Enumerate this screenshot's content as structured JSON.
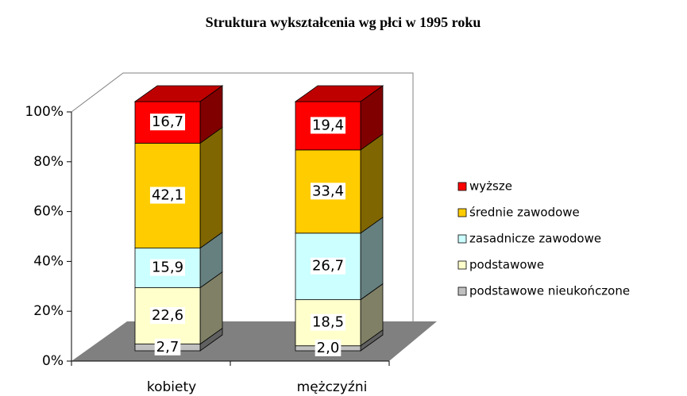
{
  "chart_data": {
    "type": "bar",
    "stacked": true,
    "title": "Struktura wykształcenia wg płci w 1995 roku",
    "categories": [
      "kobiety",
      "mężczyźni"
    ],
    "series": [
      {
        "name": "podstawowe nieukończone",
        "color": "#c0c0c0",
        "values": [
          2.7,
          2.0
        ],
        "value_labels": [
          "2,7",
          "2,0"
        ]
      },
      {
        "name": "podstawowe",
        "color": "#ffffcc",
        "values": [
          22.6,
          18.5
        ],
        "value_labels": [
          "22,6",
          "18,5"
        ]
      },
      {
        "name": "zasadnicze zawodowe",
        "color": "#ccffff",
        "values": [
          15.9,
          26.7
        ],
        "value_labels": [
          "15,9",
          "26,7"
        ]
      },
      {
        "name": "średnie zawodowe",
        "color": "#ffcc00",
        "values": [
          42.1,
          33.4
        ],
        "value_labels": [
          "42,1",
          "33,4"
        ]
      },
      {
        "name": "wyższe",
        "color": "#ff0000",
        "values": [
          16.7,
          19.4
        ],
        "value_labels": [
          "16,7",
          "19,4"
        ]
      }
    ],
    "ylim": [
      0,
      100
    ],
    "yticks": [
      {
        "value": 0,
        "label": "0%"
      },
      {
        "value": 20,
        "label": "20%"
      },
      {
        "value": 40,
        "label": "40%"
      },
      {
        "value": 60,
        "label": "60%"
      },
      {
        "value": 80,
        "label": "80%"
      },
      {
        "value": 100,
        "label": "100%"
      }
    ],
    "grid": false,
    "legend": "right"
  }
}
